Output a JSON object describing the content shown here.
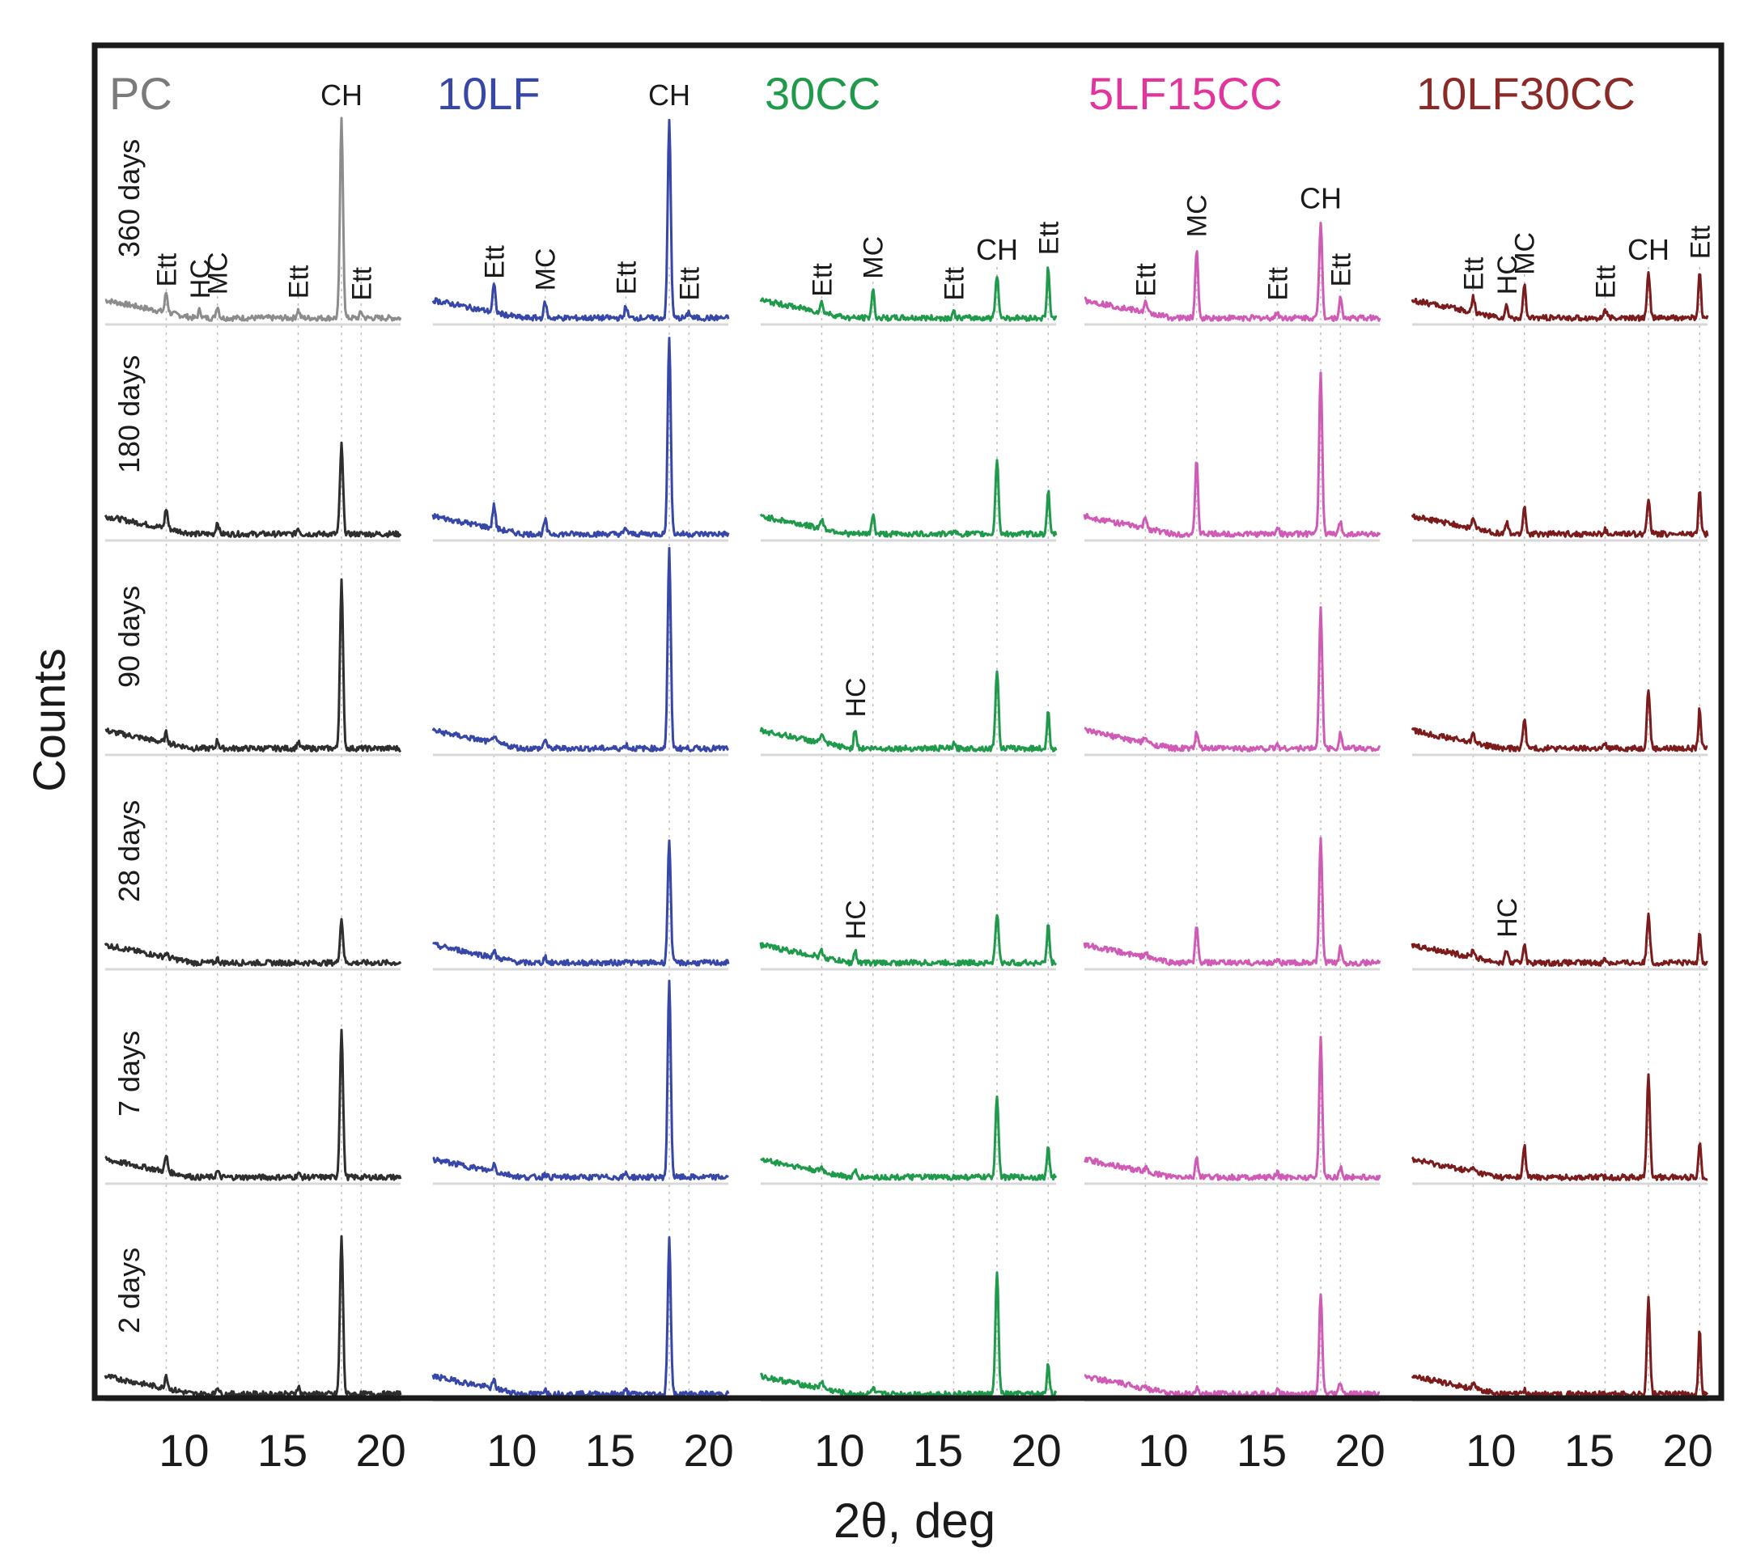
{
  "chart_data": {
    "type": "line",
    "ylabel": "Counts",
    "xlabel": "2θ, deg",
    "x_range": [
      6,
      21
    ],
    "x_ticks": [
      10,
      15,
      20
    ],
    "ages": [
      "360 days",
      "180 days",
      "90 days",
      "28 days",
      "7 days",
      "2 days"
    ],
    "marker_positions": {
      "Ett": [
        9.1,
        15.8,
        19.0
      ],
      "HC": [
        10.8
      ],
      "MC": [
        11.7
      ]
    },
    "panels": [
      {
        "name": "PC",
        "color": "#7a7a7a",
        "trace_colors": [
          "#8c8c8c",
          "#2e2e2e",
          "#2e2e2e",
          "#2e2e2e",
          "#2e2e2e",
          "#2e2e2e"
        ],
        "ch_position": 18.0,
        "ch_heights": [
          1.0,
          0.45,
          0.85,
          0.22,
          0.75,
          0.8
        ],
        "minor_peaks": [
          [
            [
              9.1,
              0.1
            ],
            [
              10.8,
              0.04
            ],
            [
              11.7,
              0.06
            ],
            [
              15.8,
              0.04
            ],
            [
              19.0,
              0.03
            ]
          ],
          [
            [
              9.1,
              0.1
            ],
            [
              11.7,
              0.06
            ],
            [
              15.8,
              0.03
            ]
          ],
          [
            [
              9.1,
              0.05
            ],
            [
              11.7,
              0.04
            ],
            [
              15.8,
              0.03
            ]
          ],
          [
            [
              9.1,
              0.02
            ],
            [
              11.7,
              0.02
            ]
          ],
          [
            [
              9.1,
              0.08
            ],
            [
              11.7,
              0.03
            ],
            [
              15.8,
              0.02
            ]
          ],
          [
            [
              9.1,
              0.07
            ],
            [
              11.7,
              0.04
            ],
            [
              15.8,
              0.04
            ]
          ]
        ],
        "labels": [
          {
            "text": "CH",
            "x": 18.0,
            "row": 0,
            "rotate": false
          },
          {
            "text": "Ett",
            "x": 9.1,
            "row": 0,
            "rotate": true
          },
          {
            "text": "HC",
            "x": 10.8,
            "row": 0,
            "rotate": true
          },
          {
            "text": "MC",
            "x": 11.7,
            "row": 0,
            "rotate": true
          },
          {
            "text": "Ett",
            "x": 15.8,
            "row": 0,
            "rotate": true
          },
          {
            "text": "Ett",
            "x": 19.0,
            "row": 0,
            "rotate": true
          }
        ]
      },
      {
        "name": "10LF",
        "color": "#3747a8",
        "trace_colors": [
          "#3747a8",
          "#3747a8",
          "#3747a8",
          "#3747a8",
          "#3747a8",
          "#3747a8"
        ],
        "ch_position": 18.0,
        "ch_heights": [
          1.0,
          1.0,
          1.0,
          0.62,
          1.0,
          0.78
        ],
        "minor_peaks": [
          [
            [
              9.1,
              0.14
            ],
            [
              11.7,
              0.08
            ],
            [
              15.8,
              0.06
            ],
            [
              19.0,
              0.03
            ]
          ],
          [
            [
              9.1,
              0.12
            ],
            [
              11.7,
              0.07
            ],
            [
              15.8,
              0.03
            ]
          ],
          [
            [
              9.1,
              0.04
            ],
            [
              11.7,
              0.05
            ],
            [
              15.8,
              0.02
            ]
          ],
          [
            [
              9.1,
              0.03
            ],
            [
              11.7,
              0.03
            ],
            [
              15.8,
              0.02
            ]
          ],
          [
            [
              9.1,
              0.04
            ],
            [
              11.7,
              0.02
            ],
            [
              15.8,
              0.02
            ]
          ],
          [
            [
              9.1,
              0.04
            ],
            [
              11.7,
              0.03
            ],
            [
              15.8,
              0.02
            ]
          ]
        ],
        "labels": [
          {
            "text": "CH",
            "x": 18.0,
            "row": 0,
            "rotate": false
          },
          {
            "text": "Ett",
            "x": 9.1,
            "row": 0,
            "rotate": true
          },
          {
            "text": "MC",
            "x": 11.7,
            "row": 0,
            "rotate": true
          },
          {
            "text": "Ett",
            "x": 15.8,
            "row": 0,
            "rotate": true
          },
          {
            "text": "Ett",
            "x": 19.0,
            "row": 0,
            "rotate": true
          }
        ]
      },
      {
        "name": "30CC",
        "color": "#1f9a4a",
        "trace_colors": [
          "#1f9a4a",
          "#1f9a4a",
          "#1f9a4a",
          "#1f9a4a",
          "#1f9a4a",
          "#1f9a4a"
        ],
        "ch_position": 18.0,
        "second_position": 20.6,
        "ch_heights": [
          0.22,
          0.38,
          0.4,
          0.25,
          0.42,
          0.62
        ],
        "second_heights": [
          0.26,
          0.22,
          0.18,
          0.2,
          0.16,
          0.16
        ],
        "minor_peaks": [
          [
            [
              9.1,
              0.05
            ],
            [
              11.7,
              0.14
            ],
            [
              15.8,
              0.03
            ]
          ],
          [
            [
              9.1,
              0.05
            ],
            [
              11.7,
              0.1
            ],
            [
              15.8,
              0.02
            ]
          ],
          [
            [
              9.1,
              0.05
            ],
            [
              10.8,
              0.1
            ],
            [
              15.8,
              0.02
            ]
          ],
          [
            [
              9.1,
              0.03
            ],
            [
              10.8,
              0.06
            ]
          ],
          [
            [
              9.1,
              0.02
            ],
            [
              10.8,
              0.03
            ]
          ],
          [
            [
              9.1,
              0.04
            ],
            [
              11.7,
              0.03
            ]
          ]
        ],
        "labels": [
          {
            "text": "Ett",
            "x": 9.1,
            "row": 0,
            "rotate": true
          },
          {
            "text": "MC",
            "x": 11.7,
            "row": 0,
            "rotate": true
          },
          {
            "text": "Ett",
            "x": 15.8,
            "row": 0,
            "rotate": true
          },
          {
            "text": "CH",
            "x": 18.0,
            "row": 0,
            "rotate": false
          },
          {
            "text": "Ett",
            "x": 20.6,
            "row": 0,
            "rotate": true
          },
          {
            "text": "HC",
            "x": 10.8,
            "row": 2,
            "rotate": true
          },
          {
            "text": "HC",
            "x": 10.8,
            "row": 3,
            "rotate": true
          }
        ]
      },
      {
        "name": "5LF15CC",
        "color": "#e0369b",
        "trace_colors": [
          "#cf5bb6",
          "#cf5bb6",
          "#cf5bb6",
          "#cf5bb6",
          "#cf5bb6",
          "#cf5bb6"
        ],
        "ch_position": 18.0,
        "ch_heights": [
          0.48,
          0.82,
          0.72,
          0.62,
          0.7,
          0.5
        ],
        "minor_peaks": [
          [
            [
              9.1,
              0.05
            ],
            [
              11.7,
              0.35
            ],
            [
              15.8,
              0.03
            ],
            [
              19.0,
              0.1
            ]
          ],
          [
            [
              9.1,
              0.06
            ],
            [
              11.7,
              0.38
            ],
            [
              15.8,
              0.04
            ],
            [
              19.0,
              0.06
            ]
          ],
          [
            [
              9.1,
              0.03
            ],
            [
              11.7,
              0.08
            ],
            [
              15.8,
              0.02
            ],
            [
              19.0,
              0.08
            ]
          ],
          [
            [
              9.1,
              0.03
            ],
            [
              11.7,
              0.18
            ],
            [
              15.8,
              0.02
            ],
            [
              19.0,
              0.08
            ]
          ],
          [
            [
              9.1,
              0.02
            ],
            [
              11.7,
              0.1
            ],
            [
              15.8,
              0.02
            ],
            [
              19.0,
              0.05
            ]
          ],
          [
            [
              9.1,
              0.02
            ],
            [
              11.7,
              0.03
            ],
            [
              15.8,
              0.02
            ],
            [
              19.0,
              0.06
            ]
          ]
        ],
        "labels": [
          {
            "text": "Ett",
            "x": 9.1,
            "row": 0,
            "rotate": true
          },
          {
            "text": "MC",
            "x": 11.7,
            "row": 0,
            "rotate": true
          },
          {
            "text": "Ett",
            "x": 15.8,
            "row": 0,
            "rotate": true
          },
          {
            "text": "CH",
            "x": 18.0,
            "row": 0,
            "rotate": false
          },
          {
            "text": "Ett",
            "x": 19.0,
            "row": 0,
            "rotate": true
          }
        ]
      },
      {
        "name": "10LF30CC",
        "color": "#8b2a26",
        "trace_colors": [
          "#7c1b1b",
          "#7c1b1b",
          "#7c1b1b",
          "#7c1b1b",
          "#7c1b1b",
          "#7c1b1b"
        ],
        "ch_position": 18.0,
        "second_position": 20.6,
        "ch_heights": [
          0.22,
          0.18,
          0.3,
          0.25,
          0.52,
          0.48
        ],
        "second_heights": [
          0.24,
          0.22,
          0.2,
          0.16,
          0.18,
          0.32
        ],
        "minor_peaks": [
          [
            [
              9.1,
              0.08
            ],
            [
              10.8,
              0.06
            ],
            [
              11.7,
              0.16
            ],
            [
              15.8,
              0.04
            ]
          ],
          [
            [
              9.1,
              0.05
            ],
            [
              10.8,
              0.06
            ],
            [
              11.7,
              0.14
            ],
            [
              15.8,
              0.02
            ]
          ],
          [
            [
              9.1,
              0.06
            ],
            [
              11.7,
              0.16
            ],
            [
              15.8,
              0.02
            ]
          ],
          [
            [
              9.1,
              0.04
            ],
            [
              10.8,
              0.07
            ],
            [
              11.7,
              0.1
            ],
            [
              15.8,
              0.02
            ]
          ],
          [
            [
              9.1,
              0.02
            ],
            [
              11.7,
              0.16
            ]
          ],
          [
            [
              9.1,
              0.02
            ],
            [
              11.7,
              0.02
            ]
          ]
        ],
        "labels": [
          {
            "text": "Ett",
            "x": 9.1,
            "row": 0,
            "rotate": true
          },
          {
            "text": "HC",
            "x": 10.8,
            "row": 0,
            "rotate": true
          },
          {
            "text": "MC",
            "x": 11.7,
            "row": 0,
            "rotate": true
          },
          {
            "text": "Ett",
            "x": 15.8,
            "row": 0,
            "rotate": true
          },
          {
            "text": "CH",
            "x": 18.0,
            "row": 0,
            "rotate": false
          },
          {
            "text": "Ett",
            "x": 20.6,
            "row": 0,
            "rotate": true
          },
          {
            "text": "HC",
            "x": 10.8,
            "row": 3,
            "rotate": true
          }
        ]
      }
    ]
  }
}
